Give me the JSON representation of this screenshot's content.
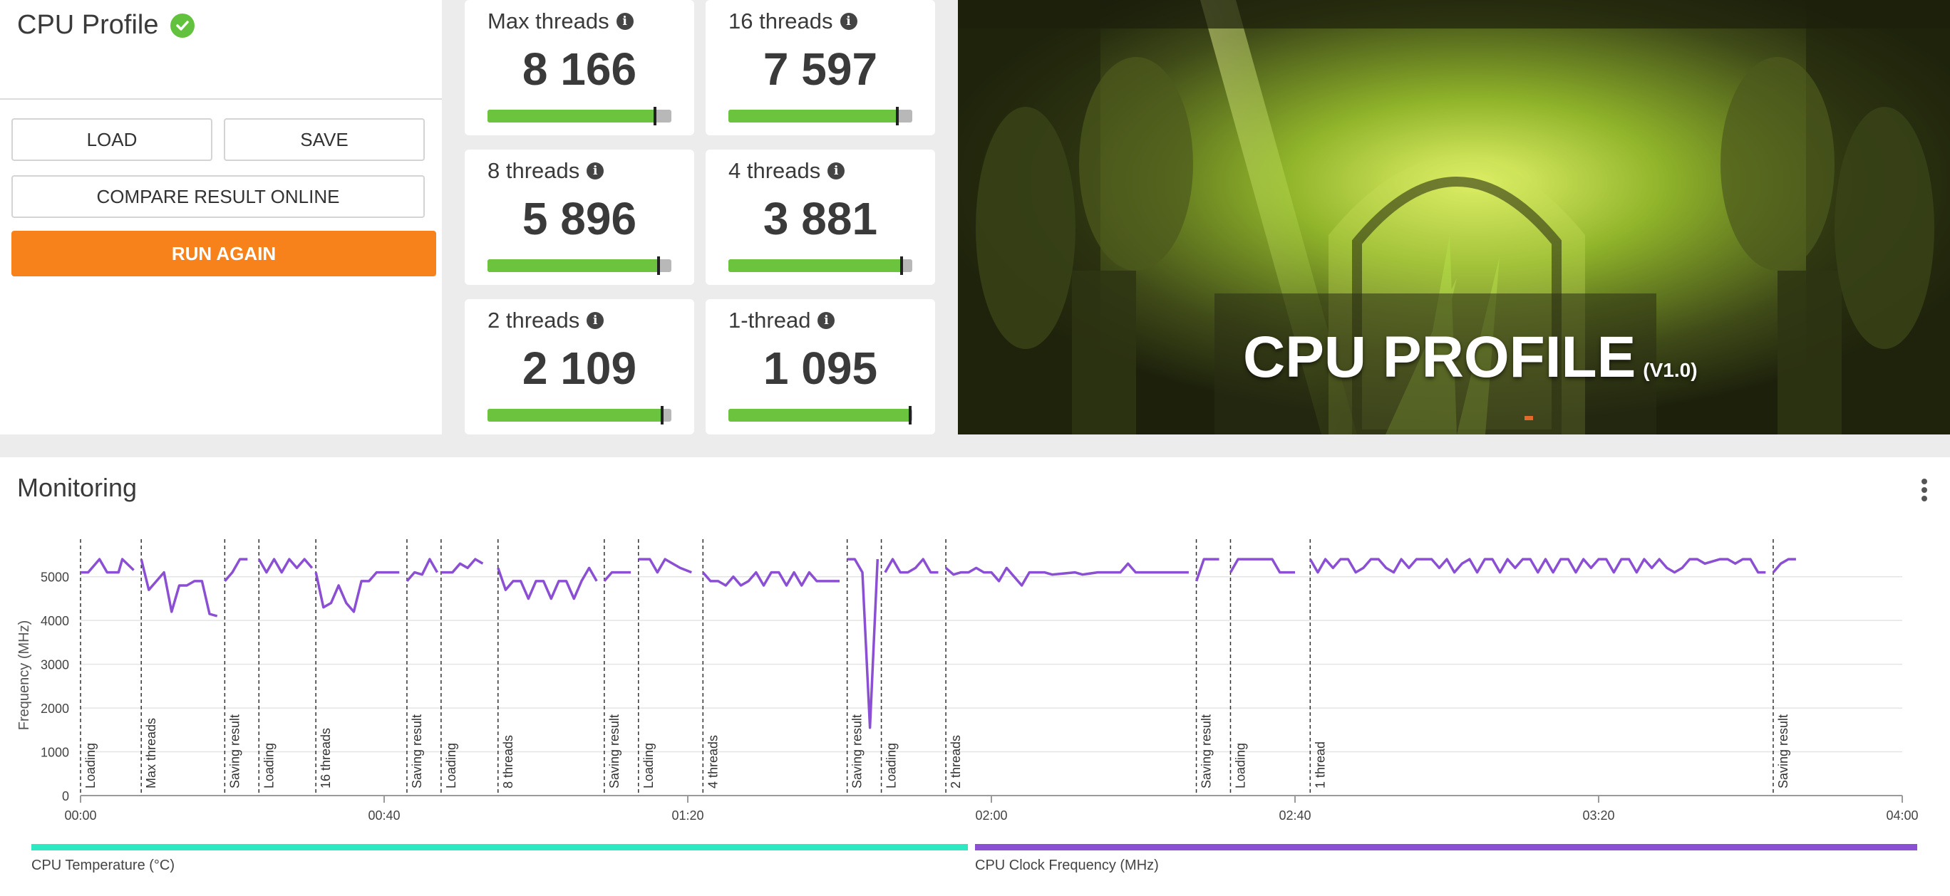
{
  "profile": {
    "title": "CPU Profile",
    "buttons": {
      "load": "LOAD",
      "save": "SAVE",
      "compare": "COMPARE RESULT ONLINE",
      "run_again": "RUN AGAIN"
    }
  },
  "scores": [
    {
      "label": "Max threads",
      "value": "8 166",
      "level": 0.91
    },
    {
      "label": "16 threads",
      "value": "7 597",
      "level": 0.92
    },
    {
      "label": "8 threads",
      "value": "5 896",
      "level": 0.93
    },
    {
      "label": "4 threads",
      "value": "3 881",
      "level": 0.94
    },
    {
      "label": "2 threads",
      "value": "2 109",
      "level": 0.95
    },
    {
      "label": "1-thread",
      "value": "1 095",
      "level": 0.99
    }
  ],
  "hero": {
    "title": "CPU PROFILE",
    "version": "(V1.0)"
  },
  "monitoring": {
    "title": "Monitoring",
    "legend": [
      {
        "name": "CPU Temperature (°C)",
        "color": "#2de8c0"
      },
      {
        "name": "CPU Clock Frequency (MHz)",
        "color": "#8b4fd3"
      }
    ]
  },
  "chart_data": {
    "type": "line",
    "ylabel": "Frequency (MHz)",
    "ylim": [
      0,
      5500
    ],
    "yticks": [
      0,
      1000,
      2000,
      3000,
      4000,
      5000
    ],
    "xlim_seconds": [
      0,
      240
    ],
    "xticks": [
      "00:00",
      "00:40",
      "01:20",
      "02:00",
      "02:40",
      "03:20",
      "04:00"
    ],
    "line_color": "#8b4fd3",
    "markers": [
      {
        "t": 0,
        "label": "Loading"
      },
      {
        "t": 8,
        "label": "Max threads"
      },
      {
        "t": 19,
        "label": "Saving result"
      },
      {
        "t": 23.5,
        "label": "Loading"
      },
      {
        "t": 31,
        "label": "16 threads"
      },
      {
        "t": 43,
        "label": "Saving result"
      },
      {
        "t": 47.5,
        "label": "Loading"
      },
      {
        "t": 55,
        "label": "8 threads"
      },
      {
        "t": 69,
        "label": "Saving result"
      },
      {
        "t": 73.5,
        "label": "Loading"
      },
      {
        "t": 82,
        "label": "4 threads"
      },
      {
        "t": 101,
        "label": "Saving result"
      },
      {
        "t": 105.5,
        "label": "Loading"
      },
      {
        "t": 114,
        "label": "2 threads"
      },
      {
        "t": 147,
        "label": "Saving result"
      },
      {
        "t": 151.5,
        "label": "Loading"
      },
      {
        "t": 162,
        "label": "1 thread"
      },
      {
        "t": 223,
        "label": "Saving result"
      }
    ],
    "segments": [
      [
        [
          0,
          5100
        ],
        [
          1,
          5100
        ],
        [
          2.5,
          5400
        ],
        [
          3.5,
          5100
        ],
        [
          5,
          5100
        ],
        [
          5.5,
          5400
        ],
        [
          7,
          5150
        ]
      ],
      [
        [
          8,
          5400
        ],
        [
          9,
          4700
        ],
        [
          10,
          4900
        ],
        [
          11,
          5100
        ],
        [
          12,
          4200
        ],
        [
          13,
          4800
        ],
        [
          14,
          4800
        ],
        [
          15,
          4900
        ],
        [
          16,
          4900
        ],
        [
          17,
          4150
        ],
        [
          18,
          4100
        ]
      ],
      [
        [
          19,
          4900
        ],
        [
          20,
          5100
        ],
        [
          21,
          5400
        ],
        [
          22,
          5400
        ]
      ],
      [
        [
          23.5,
          5400
        ],
        [
          24.5,
          5100
        ],
        [
          25.5,
          5400
        ],
        [
          26.5,
          5100
        ],
        [
          27.5,
          5400
        ],
        [
          28.5,
          5200
        ],
        [
          29.5,
          5400
        ],
        [
          30.5,
          5200
        ]
      ],
      [
        [
          31,
          5100
        ],
        [
          32,
          4300
        ],
        [
          33,
          4400
        ],
        [
          34,
          4800
        ],
        [
          35,
          4400
        ],
        [
          36,
          4200
        ],
        [
          37,
          4900
        ],
        [
          38,
          4900
        ],
        [
          39,
          5100
        ],
        [
          42,
          5100
        ]
      ],
      [
        [
          43,
          4900
        ],
        [
          44,
          5100
        ],
        [
          45,
          5050
        ],
        [
          46,
          5400
        ],
        [
          47,
          5100
        ]
      ],
      [
        [
          47.5,
          5100
        ],
        [
          49,
          5100
        ],
        [
          50,
          5300
        ],
        [
          51,
          5200
        ],
        [
          52,
          5400
        ],
        [
          53,
          5300
        ]
      ],
      [
        [
          55,
          5200
        ],
        [
          56,
          4700
        ],
        [
          57,
          4900
        ],
        [
          58,
          4900
        ],
        [
          59,
          4500
        ],
        [
          60,
          4900
        ],
        [
          61,
          4900
        ],
        [
          62,
          4500
        ],
        [
          63,
          4900
        ],
        [
          64,
          4900
        ],
        [
          65,
          4500
        ],
        [
          66,
          4900
        ],
        [
          67,
          5200
        ],
        [
          68,
          4900
        ]
      ],
      [
        [
          69,
          4900
        ],
        [
          70,
          5100
        ],
        [
          72.5,
          5100
        ]
      ],
      [
        [
          73.5,
          5400
        ],
        [
          75,
          5400
        ],
        [
          76,
          5100
        ],
        [
          77,
          5400
        ],
        [
          78,
          5300
        ],
        [
          79,
          5200
        ],
        [
          80.5,
          5100
        ]
      ],
      [
        [
          82,
          5100
        ],
        [
          83,
          4900
        ],
        [
          84,
          4900
        ],
        [
          85,
          4800
        ],
        [
          86,
          5000
        ],
        [
          87,
          4800
        ],
        [
          88,
          4900
        ],
        [
          89,
          5100
        ],
        [
          90,
          4800
        ],
        [
          91,
          5100
        ],
        [
          92,
          5100
        ],
        [
          93,
          4800
        ],
        [
          94,
          5100
        ],
        [
          95,
          4800
        ],
        [
          96,
          5100
        ],
        [
          97,
          4900
        ],
        [
          100,
          4900
        ]
      ],
      [
        [
          101,
          5400
        ],
        [
          102,
          5400
        ],
        [
          103,
          5100
        ],
        [
          104,
          1550
        ],
        [
          105,
          5400
        ]
      ],
      [
        [
          106,
          5100
        ],
        [
          107,
          5400
        ],
        [
          108,
          5100
        ],
        [
          109,
          5100
        ],
        [
          110,
          5200
        ],
        [
          111,
          5400
        ],
        [
          112,
          5100
        ],
        [
          113,
          5100
        ]
      ],
      [
        [
          114,
          5200
        ],
        [
          115,
          5050
        ],
        [
          116,
          5100
        ],
        [
          117,
          5100
        ],
        [
          118,
          5200
        ],
        [
          119,
          5100
        ],
        [
          120,
          5100
        ],
        [
          121,
          4900
        ],
        [
          122,
          5200
        ],
        [
          123,
          5000
        ],
        [
          124,
          4800
        ],
        [
          125,
          5100
        ],
        [
          127,
          5100
        ],
        [
          128,
          5050
        ],
        [
          131,
          5100
        ],
        [
          132,
          5050
        ],
        [
          134,
          5100
        ],
        [
          137,
          5100
        ],
        [
          138,
          5300
        ],
        [
          139,
          5100
        ],
        [
          146,
          5100
        ]
      ],
      [
        [
          147,
          4900
        ],
        [
          148,
          5400
        ],
        [
          150,
          5400
        ]
      ],
      [
        [
          151.5,
          5100
        ],
        [
          152.5,
          5400
        ],
        [
          157,
          5400
        ],
        [
          158,
          5100
        ],
        [
          160,
          5100
        ]
      ],
      [
        [
          162,
          5400
        ],
        [
          163,
          5100
        ],
        [
          164,
          5400
        ],
        [
          165,
          5200
        ],
        [
          166,
          5400
        ],
        [
          167,
          5400
        ],
        [
          168,
          5100
        ],
        [
          169,
          5200
        ],
        [
          170,
          5400
        ],
        [
          171,
          5400
        ],
        [
          172,
          5200
        ],
        [
          173,
          5100
        ],
        [
          174,
          5400
        ],
        [
          175,
          5200
        ],
        [
          176,
          5400
        ],
        [
          178,
          5400
        ],
        [
          179,
          5200
        ],
        [
          180,
          5400
        ],
        [
          181,
          5100
        ],
        [
          182,
          5300
        ],
        [
          183,
          5400
        ],
        [
          184,
          5100
        ],
        [
          185,
          5400
        ],
        [
          186,
          5400
        ],
        [
          187,
          5100
        ],
        [
          188,
          5400
        ],
        [
          189,
          5200
        ],
        [
          190,
          5400
        ],
        [
          191,
          5400
        ],
        [
          192,
          5100
        ],
        [
          193,
          5400
        ],
        [
          194,
          5100
        ],
        [
          195,
          5400
        ],
        [
          196,
          5400
        ],
        [
          197,
          5100
        ],
        [
          198,
          5400
        ],
        [
          199,
          5200
        ],
        [
          200,
          5400
        ],
        [
          201,
          5400
        ],
        [
          202,
          5100
        ],
        [
          203,
          5400
        ],
        [
          204,
          5400
        ],
        [
          205,
          5100
        ],
        [
          206,
          5400
        ],
        [
          207,
          5200
        ],
        [
          208,
          5400
        ],
        [
          209,
          5200
        ],
        [
          210,
          5100
        ],
        [
          211,
          5200
        ],
        [
          212,
          5400
        ],
        [
          213,
          5400
        ],
        [
          214,
          5300
        ],
        [
          216,
          5400
        ],
        [
          217,
          5400
        ],
        [
          218,
          5300
        ],
        [
          219,
          5400
        ],
        [
          220,
          5400
        ],
        [
          221,
          5100
        ],
        [
          222,
          5100
        ]
      ],
      [
        [
          223,
          5100
        ],
        [
          224,
          5300
        ],
        [
          225,
          5400
        ],
        [
          226,
          5400
        ]
      ]
    ]
  }
}
